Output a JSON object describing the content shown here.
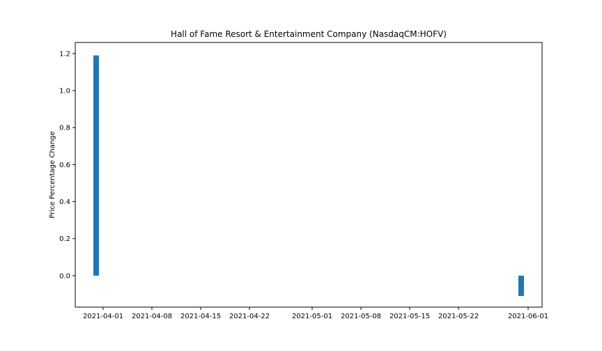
{
  "chart_data": {
    "type": "bar",
    "title": "Hall of Fame Resort & Entertainment Company (NasdaqCM:HOFV)",
    "xlabel": "",
    "ylabel": "Price Percentage Change",
    "x_axis_type": "date",
    "xlim": [
      "2021-03-28",
      "2021-06-03"
    ],
    "ylim": [
      -0.17,
      1.26
    ],
    "x_ticks": [
      "2021-04-01",
      "2021-04-08",
      "2021-04-15",
      "2021-04-22",
      "2021-05-01",
      "2021-05-08",
      "2021-05-15",
      "2021-05-22",
      "2021-06-01"
    ],
    "y_ticks": [
      "0.0",
      "0.2",
      "0.4",
      "0.6",
      "0.8",
      "1.0",
      "1.2"
    ],
    "bars": [
      {
        "date": "2021-03-31",
        "value": 1.19
      },
      {
        "date": "2021-05-31",
        "value": -0.11
      }
    ],
    "bar_color": "#1f77b4",
    "grid": false,
    "legend": "none"
  }
}
